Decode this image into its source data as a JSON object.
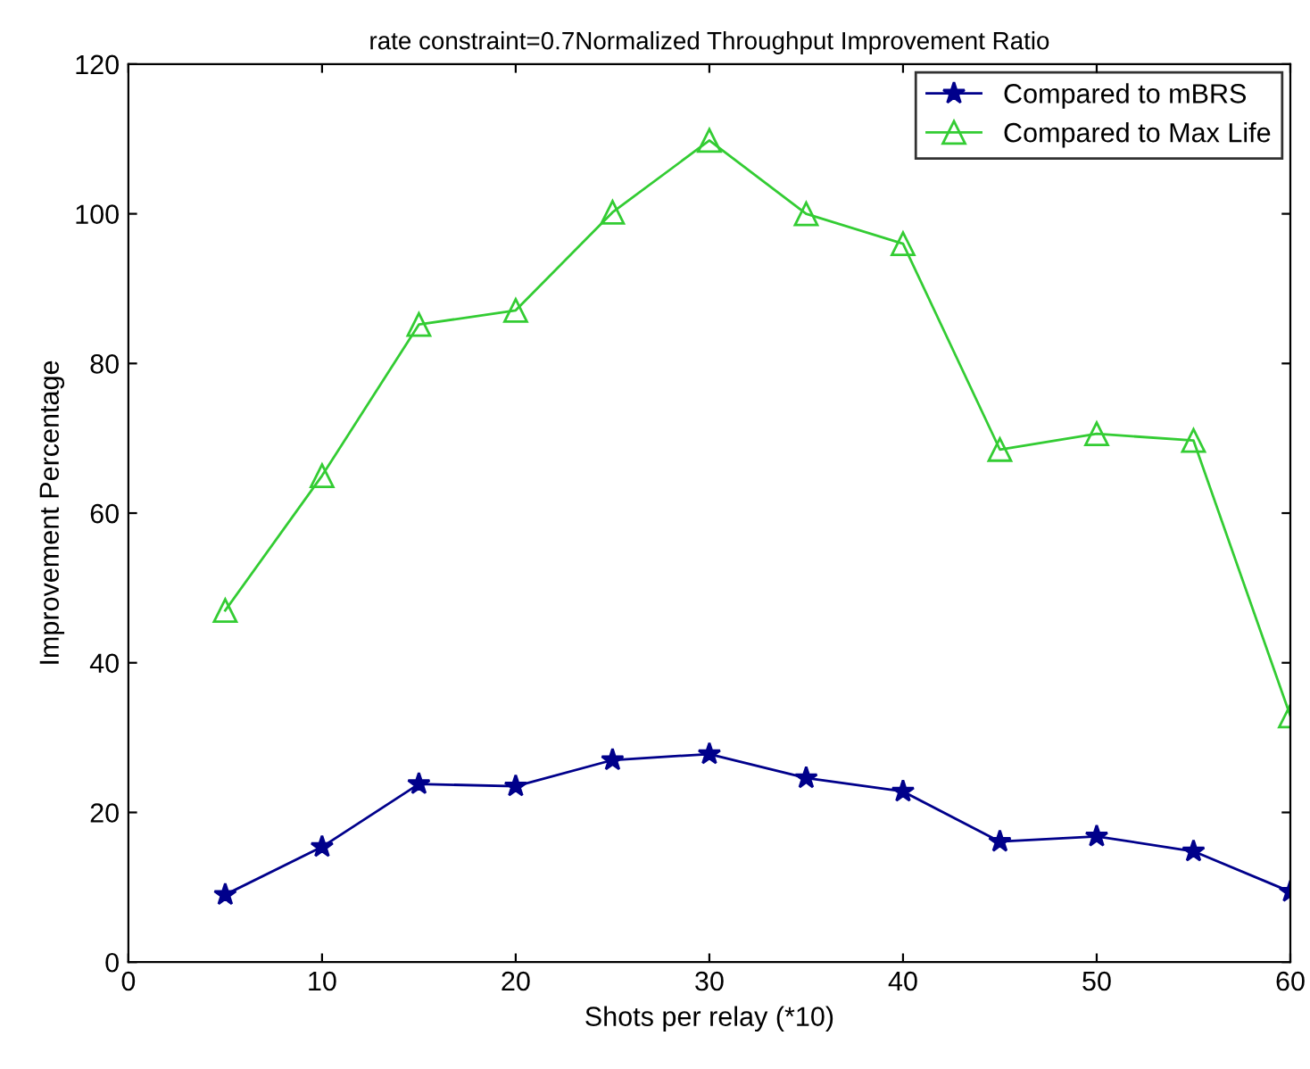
{
  "chart_data": {
    "type": "line",
    "title": "rate constraint=0.7Normalized Throughput Improvement Ratio",
    "xlabel": "Shots per relay (*10)",
    "ylabel": "Improvement Percentage",
    "x": [
      5,
      10,
      15,
      20,
      25,
      30,
      35,
      40,
      45,
      50,
      55,
      60
    ],
    "series": [
      {
        "name": "Compared to mBRS",
        "color": "#00008b",
        "marker": "star",
        "values": [
          9,
          15.4,
          23.8,
          23.5,
          27,
          27.8,
          24.6,
          22.8,
          16.1,
          16.8,
          14.8,
          9.4
        ]
      },
      {
        "name": "Compared to Max Life",
        "color": "#33cc33",
        "marker": "triangle",
        "values": [
          47,
          65,
          85.2,
          87.1,
          100.2,
          109.8,
          100,
          96,
          68.5,
          70.6,
          69.7,
          32.9
        ]
      }
    ],
    "xlim": [
      0,
      60
    ],
    "ylim": [
      0,
      120
    ],
    "xticks": [
      0,
      10,
      20,
      30,
      40,
      50,
      60
    ],
    "yticks": [
      0,
      20,
      40,
      60,
      80,
      100,
      120
    ],
    "grid": false,
    "legend": "top right",
    "line_style": "solid"
  }
}
